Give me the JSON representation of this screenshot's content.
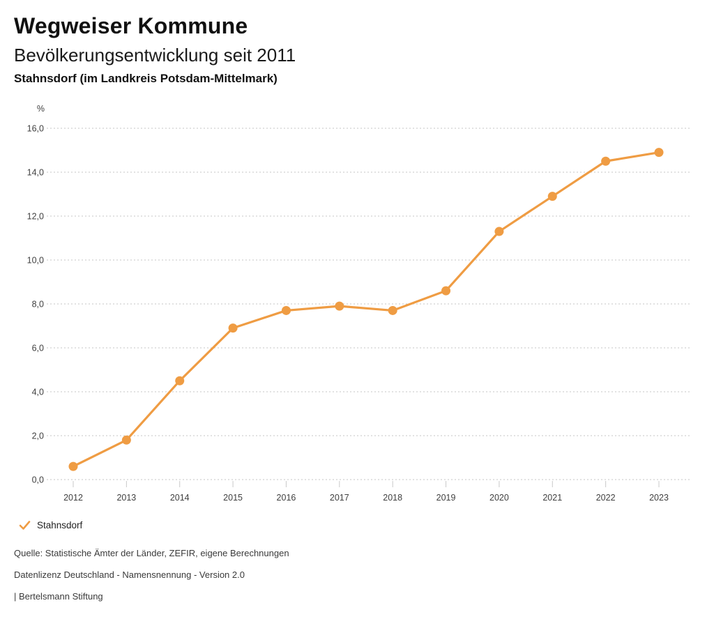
{
  "header": {
    "title": "Wegweiser Kommune",
    "subtitle": "Bevölkerungsentwicklung seit 2011",
    "region": "Stahnsdorf (im Landkreis Potsdam-Mittelmark)"
  },
  "chart_data": {
    "type": "line",
    "title": "Bevölkerungsentwicklung seit 2011",
    "subtitle": "Stahnsdorf (im Landkreis Potsdam-Mittelmark)",
    "unit": "%",
    "x": [
      "2012",
      "2013",
      "2014",
      "2015",
      "2016",
      "2017",
      "2018",
      "2019",
      "2020",
      "2021",
      "2022",
      "2023"
    ],
    "series": [
      {
        "name": "Stahnsdorf",
        "color": "#ef9c43",
        "values": [
          0.6,
          1.8,
          4.5,
          6.9,
          7.7,
          7.9,
          7.7,
          8.6,
          11.3,
          12.9,
          14.5,
          14.9
        ]
      }
    ],
    "ylim": [
      0,
      16
    ],
    "ytick_step": 2,
    "decimal_separator": ",",
    "grid": "horizontal-dotted",
    "legend_position": "bottom-left"
  },
  "legend": {
    "items": [
      {
        "label": "Stahnsdorf",
        "color": "#ef9c43",
        "marker": "check"
      }
    ]
  },
  "footer": {
    "source": "Quelle: Statistische Ämter der Länder, ZEFIR, eigene Berechnungen",
    "license": "Datenlizenz Deutschland - Namensnennung - Version 2.0",
    "attribution": "| Bertelsmann Stiftung"
  },
  "colors": {
    "series": "#ef9c43",
    "grid": "#c4c4c4",
    "axis_text": "#3f3f3f",
    "title_text": "#111111"
  }
}
